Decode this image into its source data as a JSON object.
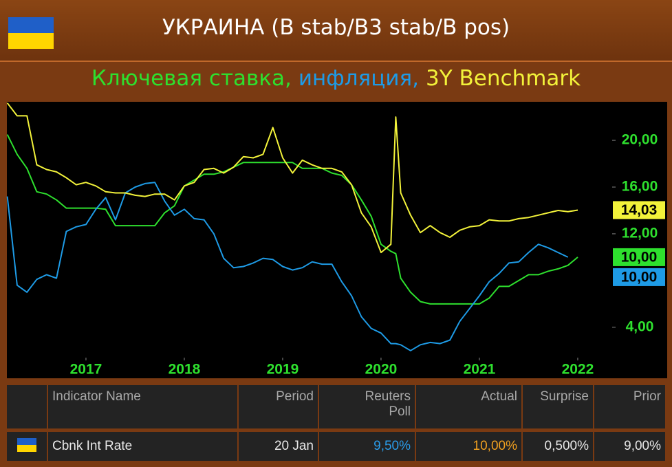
{
  "header": {
    "title": "УКРАИНА (B stab/B3 stab/B pos)"
  },
  "chart_data": {
    "type": "line",
    "x": [
      2016.2,
      2016.3,
      2016.4,
      2016.5,
      2016.6,
      2016.7,
      2016.8,
      2016.9,
      2017.0,
      2017.1,
      2017.2,
      2017.3,
      2017.4,
      2017.5,
      2017.6,
      2017.7,
      2017.8,
      2017.9,
      2018.0,
      2018.1,
      2018.2,
      2018.3,
      2018.4,
      2018.5,
      2018.6,
      2018.7,
      2018.8,
      2018.9,
      2019.0,
      2019.1,
      2019.2,
      2019.3,
      2019.4,
      2019.5,
      2019.6,
      2019.7,
      2019.8,
      2019.9,
      2020.0,
      2020.1,
      2020.15,
      2020.2,
      2020.3,
      2020.4,
      2020.5,
      2020.6,
      2020.7,
      2020.8,
      2020.9,
      2021.0,
      2021.1,
      2021.2,
      2021.3,
      2021.4,
      2021.5,
      2021.6,
      2021.7,
      2021.8,
      2021.9,
      2022.0
    ],
    "series": [
      {
        "name": "Ключевая ставка,",
        "color": "#2ee02e",
        "last_value_label": "10,00",
        "values": [
          20.5,
          18.8,
          17.6,
          15.6,
          15.4,
          14.9,
          14.2,
          14.2,
          14.2,
          14.2,
          14.1,
          12.7,
          12.7,
          12.7,
          12.7,
          12.7,
          13.8,
          14.4,
          16.1,
          16.6,
          17.1,
          17.1,
          17.3,
          17.7,
          18.1,
          18.1,
          18.1,
          18.1,
          18.1,
          18.1,
          17.6,
          17.6,
          17.6,
          17.2,
          17.0,
          16.2,
          14.9,
          13.5,
          11.1,
          10.5,
          10.3,
          8.2,
          7.0,
          6.2,
          6.0,
          6.0,
          6.0,
          6.0,
          6.0,
          6.0,
          6.5,
          7.5,
          7.5,
          8.0,
          8.5,
          8.5,
          8.8,
          9.0,
          9.3,
          10.0
        ]
      },
      {
        "name": "инфляция,",
        "color": "#1e9be6",
        "last_value_label": "10,00",
        "values": [
          15.2,
          7.6,
          7.0,
          8.1,
          8.5,
          8.2,
          12.2,
          12.6,
          12.8,
          14.1,
          15.1,
          13.2,
          15.5,
          16.0,
          16.3,
          16.4,
          14.8,
          13.6,
          14.1,
          13.3,
          13.2,
          12.0,
          9.9,
          9.1,
          9.2,
          9.5,
          9.9,
          9.8,
          9.2,
          8.9,
          9.1,
          9.6,
          9.4,
          9.4,
          7.9,
          6.7,
          4.9,
          3.9,
          3.5,
          2.6,
          2.6,
          2.5,
          2.0,
          2.5,
          2.7,
          2.6,
          2.9,
          4.5,
          5.6,
          6.7,
          7.9,
          8.6,
          9.5,
          9.6,
          10.4,
          11.1,
          10.8,
          10.4,
          10.0,
          null
        ]
      },
      {
        "name": "3Y Benchmark",
        "color": "#f2f23a",
        "last_value_label": "14,03",
        "values": [
          23.2,
          22.1,
          22.1,
          17.9,
          17.5,
          17.3,
          16.8,
          16.2,
          16.4,
          16.1,
          15.6,
          15.5,
          15.5,
          15.3,
          15.2,
          15.4,
          15.4,
          14.9,
          16.1,
          16.4,
          17.5,
          17.6,
          17.2,
          17.7,
          18.6,
          18.5,
          18.8,
          21.1,
          18.5,
          17.2,
          18.3,
          17.9,
          17.6,
          17.6,
          17.3,
          16.2,
          13.8,
          12.6,
          10.4,
          11.1,
          22.0,
          15.5,
          13.6,
          12.1,
          12.7,
          12.1,
          11.7,
          12.3,
          12.6,
          12.7,
          13.2,
          13.1,
          13.1,
          13.3,
          13.4,
          13.6,
          13.8,
          14.0,
          13.9,
          14.03
        ]
      }
    ],
    "xlim": [
      2016.196,
      2022.35
    ],
    "xticks": [
      2017,
      2018,
      2019,
      2020,
      2021,
      2022
    ],
    "ylim": [
      1.4,
      23.3
    ],
    "yticks": [
      {
        "value": 4,
        "label": "4,00"
      },
      {
        "value": 12,
        "label": "12,00"
      },
      {
        "value": 16,
        "label": "16,00"
      },
      {
        "value": 20,
        "label": "20,00"
      }
    ],
    "grid": false
  },
  "table": {
    "header": [
      "Indicator Name",
      "Period",
      "Reuters\nPoll",
      "Actual",
      "Surprise",
      "Prior"
    ],
    "rows": [
      [
        "Cbnk Int Rate",
        "20 Jan",
        "9,50%",
        "10,00%",
        "0,500%",
        "9,00%"
      ]
    ]
  }
}
